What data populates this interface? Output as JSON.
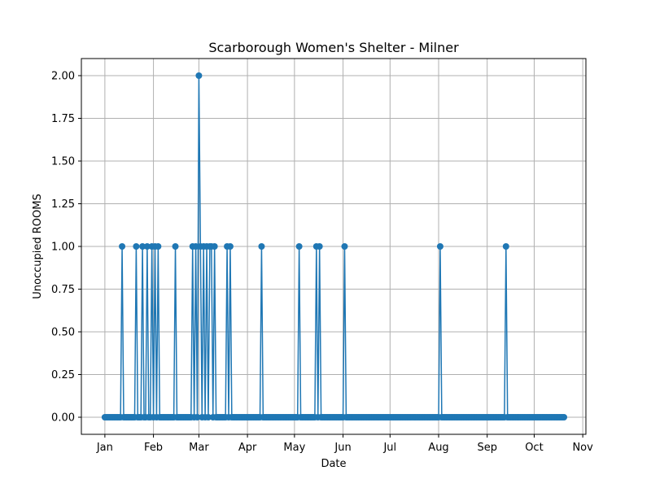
{
  "chart_data": {
    "type": "line",
    "title": "Scarborough Women's Shelter - Milner",
    "xlabel": "Date",
    "ylabel": "Unoccupied ROOMS",
    "x_tick_labels": [
      "Jan",
      "Feb",
      "Mar",
      "Apr",
      "May",
      "Jun",
      "Jul",
      "Aug",
      "Sep",
      "Oct",
      "Nov"
    ],
    "x_tick_dates": [
      "2024-01-01",
      "2024-02-01",
      "2024-03-01",
      "2024-04-01",
      "2024-05-01",
      "2024-06-01",
      "2024-07-01",
      "2024-08-01",
      "2024-09-01",
      "2024-10-01",
      "2024-11-01"
    ],
    "y_tick_labels": [
      "0.00",
      "0.25",
      "0.50",
      "0.75",
      "1.00",
      "1.25",
      "1.50",
      "1.75",
      "2.00"
    ],
    "xlim": [
      "2023-12-17",
      "2024-11-03"
    ],
    "ylim": [
      -0.1,
      2.1
    ],
    "grid": true,
    "series": [
      {
        "color": "#1f77b4",
        "x_range": [
          "2024-01-01",
          "2024-10-20"
        ],
        "default_value": 0,
        "nonzero_points": [
          {
            "date": "2024-01-12",
            "value": 1
          },
          {
            "date": "2024-01-21",
            "value": 1
          },
          {
            "date": "2024-01-25",
            "value": 1
          },
          {
            "date": "2024-01-28",
            "value": 1
          },
          {
            "date": "2024-01-31",
            "value": 1
          },
          {
            "date": "2024-02-02",
            "value": 1
          },
          {
            "date": "2024-02-04",
            "value": 1
          },
          {
            "date": "2024-02-15",
            "value": 1
          },
          {
            "date": "2024-02-26",
            "value": 1
          },
          {
            "date": "2024-02-28",
            "value": 1
          },
          {
            "date": "2024-03-01",
            "value": 2
          },
          {
            "date": "2024-03-02",
            "value": 1
          },
          {
            "date": "2024-03-04",
            "value": 1
          },
          {
            "date": "2024-03-06",
            "value": 1
          },
          {
            "date": "2024-03-08",
            "value": 1
          },
          {
            "date": "2024-03-09",
            "value": 1
          },
          {
            "date": "2024-03-11",
            "value": 1
          },
          {
            "date": "2024-03-19",
            "value": 1
          },
          {
            "date": "2024-03-21",
            "value": 1
          },
          {
            "date": "2024-04-10",
            "value": 1
          },
          {
            "date": "2024-05-04",
            "value": 1
          },
          {
            "date": "2024-05-15",
            "value": 1
          },
          {
            "date": "2024-05-17",
            "value": 1
          },
          {
            "date": "2024-06-02",
            "value": 1
          },
          {
            "date": "2024-08-02",
            "value": 1
          },
          {
            "date": "2024-09-13",
            "value": 1
          }
        ]
      }
    ]
  }
}
